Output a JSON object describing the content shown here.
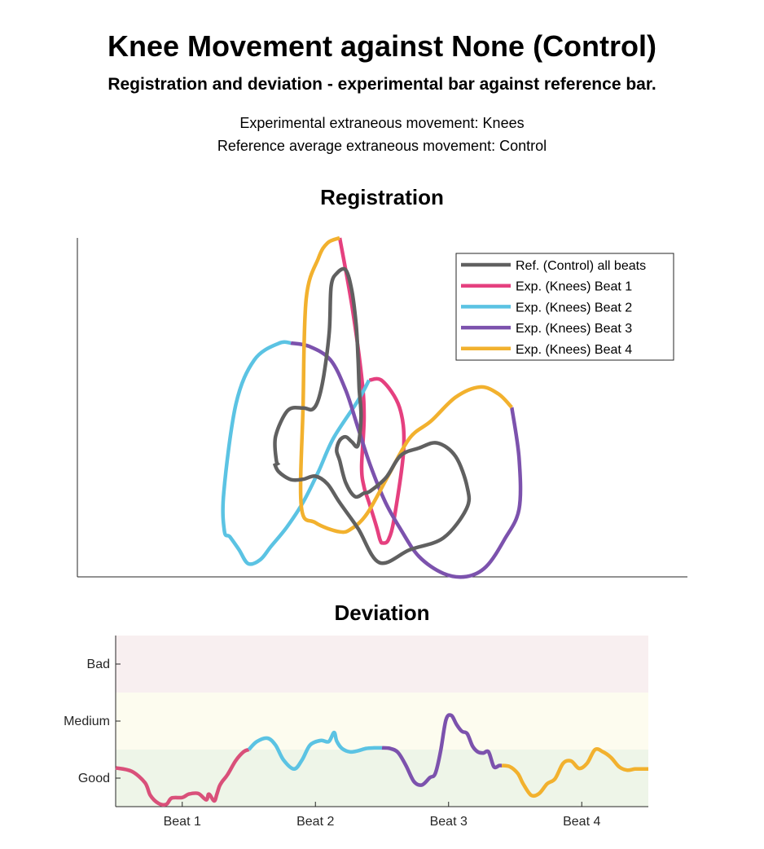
{
  "title": "Knee Movement against None (Control)",
  "subtitle": "Registration and deviation - experimental bar against reference bar.",
  "info_lines": [
    "Experimental extraneous movement: Knees",
    "Reference average extraneous movement: Control"
  ],
  "chart_data": [
    {
      "type": "line",
      "title": "Registration",
      "xlabel": "",
      "ylabel": "",
      "legend_position": "top-right",
      "grid": false,
      "series": [
        {
          "name": "Ref. (Control) all beats",
          "color": "#606060",
          "points": [
            [
              0.323,
              0.335
            ],
            [
              0.33,
              0.31
            ],
            [
              0.35,
              0.287
            ],
            [
              0.37,
              0.288
            ],
            [
              0.39,
              0.297
            ],
            [
              0.41,
              0.274
            ],
            [
              0.43,
              0.219
            ],
            [
              0.46,
              0.143
            ],
            [
              0.495,
              0.042
            ],
            [
              0.545,
              0.08
            ],
            [
              0.6,
              0.115
            ],
            [
              0.638,
              0.202
            ],
            [
              0.639,
              0.265
            ],
            [
              0.62,
              0.355
            ],
            [
              0.59,
              0.395
            ],
            [
              0.56,
              0.38
            ],
            [
              0.53,
              0.358
            ],
            [
              0.506,
              0.293
            ],
            [
              0.48,
              0.253
            ],
            [
              0.47,
              0.247
            ],
            [
              0.455,
              0.237
            ],
            [
              0.44,
              0.277
            ],
            [
              0.43,
              0.343
            ],
            [
              0.425,
              0.373
            ],
            [
              0.43,
              0.403
            ],
            [
              0.44,
              0.413
            ],
            [
              0.45,
              0.398
            ],
            [
              0.46,
              0.388
            ],
            [
              0.465,
              0.473
            ],
            [
              0.462,
              0.555
            ],
            [
              0.46,
              0.651
            ],
            [
              0.457,
              0.743
            ],
            [
              0.45,
              0.843
            ],
            [
              0.44,
              0.905
            ],
            [
              0.426,
              0.897
            ],
            [
              0.416,
              0.858
            ],
            [
              0.413,
              0.724
            ],
            [
              0.404,
              0.595
            ],
            [
              0.395,
              0.523
            ],
            [
              0.385,
              0.494
            ],
            [
              0.37,
              0.498
            ],
            [
              0.345,
              0.491
            ],
            [
              0.325,
              0.415
            ],
            [
              0.326,
              0.345
            ],
            [
              0.33,
              0.33
            ]
          ]
        },
        {
          "name": "Exp. (Knees) Beat 1",
          "color": "#e5407f",
          "points": [
            [
              0.43,
              1.0
            ],
            [
              0.45,
              0.8
            ],
            [
              0.466,
              0.59
            ],
            [
              0.47,
              0.47
            ],
            [
              0.466,
              0.325
            ],
            [
              0.47,
              0.265
            ],
            [
              0.478,
              0.22
            ],
            [
              0.49,
              0.15
            ],
            [
              0.496,
              0.11
            ],
            [
              0.5,
              0.1
            ],
            [
              0.51,
              0.11
            ],
            [
              0.52,
              0.18
            ],
            [
              0.535,
              0.38
            ],
            [
              0.528,
              0.5
            ],
            [
              0.5,
              0.578
            ],
            [
              0.478,
              0.58
            ]
          ]
        },
        {
          "name": "Exp. (Knees) Beat 2",
          "color": "#5bc3e3",
          "points": [
            [
              0.478,
              0.58
            ],
            [
              0.46,
              0.52
            ],
            [
              0.42,
              0.41
            ],
            [
              0.395,
              0.31
            ],
            [
              0.37,
              0.22
            ],
            [
              0.343,
              0.146
            ],
            [
              0.317,
              0.089
            ],
            [
              0.3,
              0.051
            ],
            [
              0.28,
              0.039
            ],
            [
              0.265,
              0.08
            ],
            [
              0.25,
              0.118
            ],
            [
              0.241,
              0.135
            ],
            [
              0.24,
              0.25
            ],
            [
              0.26,
              0.51
            ],
            [
              0.29,
              0.64
            ],
            [
              0.33,
              0.689
            ],
            [
              0.35,
              0.69
            ]
          ]
        },
        {
          "name": "Exp. (Knees) Beat 3",
          "color": "#7c52ad",
          "points": [
            [
              0.35,
              0.69
            ],
            [
              0.38,
              0.68
            ],
            [
              0.415,
              0.64
            ],
            [
              0.44,
              0.55
            ],
            [
              0.46,
              0.44
            ],
            [
              0.48,
              0.33
            ],
            [
              0.505,
              0.22
            ],
            [
              0.53,
              0.14
            ],
            [
              0.56,
              0.06
            ],
            [
              0.6,
              0.01
            ],
            [
              0.638,
              0.001
            ],
            [
              0.67,
              0.03
            ],
            [
              0.7,
              0.11
            ],
            [
              0.724,
              0.2
            ],
            [
              0.724,
              0.35
            ],
            [
              0.712,
              0.5
            ]
          ]
        },
        {
          "name": "Exp. (Knees) Beat 4",
          "color": "#f2b12e",
          "points": [
            [
              0.712,
              0.5
            ],
            [
              0.69,
              0.54
            ],
            [
              0.66,
              0.56
            ],
            [
              0.62,
              0.53
            ],
            [
              0.58,
              0.46
            ],
            [
              0.545,
              0.41
            ],
            [
              0.51,
              0.3
            ],
            [
              0.475,
              0.187
            ],
            [
              0.45,
              0.143
            ],
            [
              0.43,
              0.133
            ],
            [
              0.39,
              0.16
            ],
            [
              0.367,
              0.209
            ],
            [
              0.37,
              0.505
            ],
            [
              0.375,
              0.82
            ],
            [
              0.395,
              0.94
            ],
            [
              0.41,
              0.985
            ],
            [
              0.43,
              1.0
            ]
          ]
        }
      ]
    },
    {
      "type": "line",
      "title": "Deviation",
      "xlabel": "",
      "ylabel": "",
      "categories": [
        "Beat 1",
        "Beat 2",
        "Beat 3",
        "Beat 4"
      ],
      "y_categories": [
        "Good",
        "Medium",
        "Bad"
      ],
      "bands": [
        {
          "label": "Good",
          "color": "#eef5e8"
        },
        {
          "label": "Medium",
          "color": "#fdfcef"
        },
        {
          "label": "Bad",
          "color": "#f8eff0"
        }
      ],
      "ylim": [
        0,
        3
      ],
      "xlim": [
        0,
        4
      ],
      "series": [
        {
          "name": "Beat 1",
          "color": "#d9507a",
          "x": [
            0.0,
            0.12,
            0.22,
            0.26,
            0.32,
            0.38,
            0.42,
            0.5,
            0.55,
            0.62,
            0.68,
            0.7,
            0.74,
            0.76,
            0.78,
            0.8,
            0.84,
            0.9,
            0.96,
            1.0
          ],
          "y": [
            0.68,
            0.62,
            0.42,
            0.2,
            0.06,
            0.04,
            0.15,
            0.16,
            0.22,
            0.23,
            0.12,
            0.22,
            0.1,
            0.22,
            0.36,
            0.44,
            0.56,
            0.8,
            0.96,
            1.0
          ]
        },
        {
          "name": "Beat 2",
          "color": "#5bc3e3",
          "x": [
            1.0,
            1.06,
            1.14,
            1.2,
            1.26,
            1.34,
            1.4,
            1.46,
            1.54,
            1.6,
            1.64,
            1.66,
            1.7,
            1.76,
            1.82,
            1.88,
            1.94,
            2.0
          ],
          "y": [
            1.0,
            1.14,
            1.2,
            1.08,
            0.82,
            0.66,
            0.82,
            1.08,
            1.16,
            1.14,
            1.3,
            1.15,
            1.02,
            0.96,
            0.98,
            1.02,
            1.03,
            1.03
          ]
        },
        {
          "name": "Beat 3",
          "color": "#7c52ad",
          "x": [
            2.0,
            2.06,
            2.12,
            2.18,
            2.24,
            2.3,
            2.36,
            2.4,
            2.44,
            2.48,
            2.52,
            2.56,
            2.6,
            2.64,
            2.68,
            2.72,
            2.76,
            2.8,
            2.84,
            2.88,
            2.9
          ],
          "y": [
            1.03,
            1.02,
            0.95,
            0.72,
            0.44,
            0.38,
            0.51,
            0.58,
            0.97,
            1.52,
            1.6,
            1.44,
            1.32,
            1.28,
            1.06,
            0.96,
            0.94,
            0.96,
            0.7,
            0.72,
            0.72
          ]
        },
        {
          "name": "Beat 4",
          "color": "#f2b12e",
          "x": [
            2.9,
            2.96,
            3.02,
            3.06,
            3.12,
            3.18,
            3.24,
            3.3,
            3.36,
            3.42,
            3.48,
            3.54,
            3.6,
            3.66,
            3.72,
            3.78,
            3.84,
            3.9,
            3.96,
            4.0
          ],
          "y": [
            0.72,
            0.7,
            0.58,
            0.4,
            0.2,
            0.23,
            0.4,
            0.49,
            0.76,
            0.8,
            0.67,
            0.76,
            1.0,
            0.96,
            0.86,
            0.7,
            0.64,
            0.66,
            0.66,
            0.66
          ]
        }
      ]
    }
  ]
}
